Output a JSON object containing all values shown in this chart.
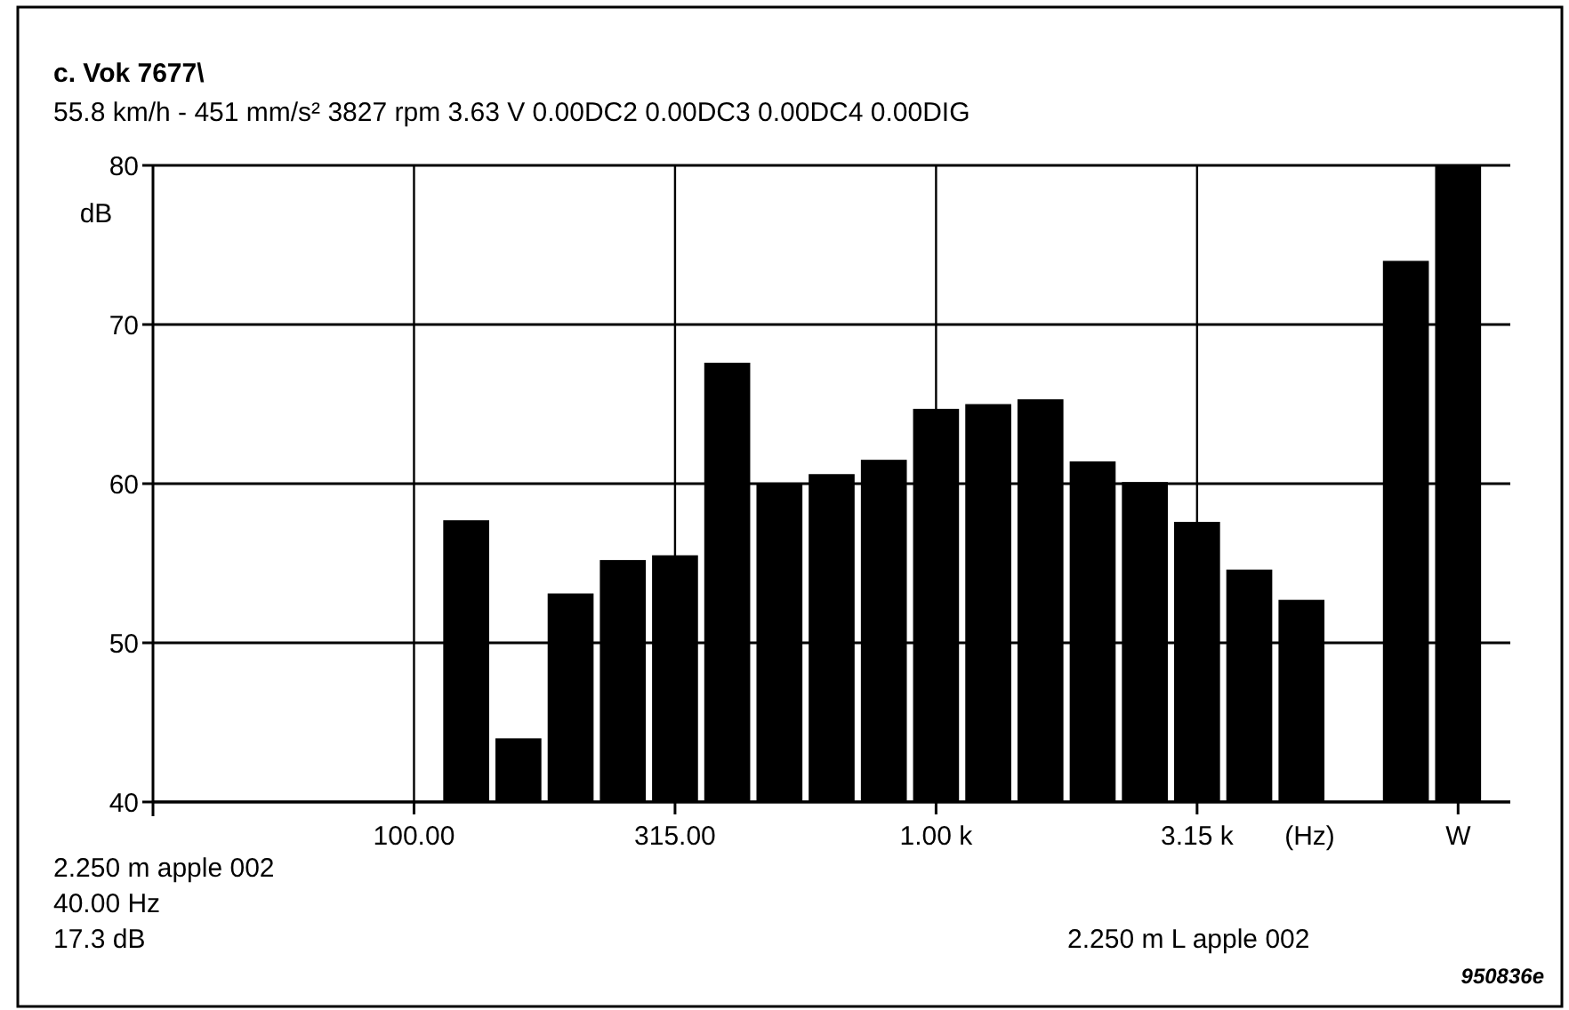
{
  "chart_data": {
    "type": "bar",
    "title": "c. Vok 7677\\",
    "subtitle": "55.8 km/h - 451 mm/s² 3827 rpm 3.63 V 0.00DC2 0.00DC3 0.00DC4 0.00DIG",
    "ylabel": "dB",
    "xlabel": "(Hz)",
    "categories": [
      null,
      null,
      null,
      null,
      null,
      "100.00",
      null,
      null,
      null,
      null,
      "315.00",
      null,
      null,
      null,
      null,
      "1.00 k",
      null,
      null,
      null,
      null,
      "3.15 k",
      null,
      null,
      null,
      null,
      "W",
      null
    ],
    "values": [
      null,
      null,
      null,
      null,
      null,
      null,
      57.7,
      44.0,
      53.1,
      55.2,
      55.5,
      67.6,
      60.0,
      60.6,
      61.5,
      64.7,
      65.0,
      65.3,
      61.4,
      60.1,
      57.6,
      54.6,
      52.7,
      null,
      74.0,
      80.0,
      null
    ],
    "color": "#000000",
    "ylim": [
      40,
      80
    ],
    "yticks": [
      40,
      50,
      60,
      70,
      80
    ],
    "grid": true,
    "annotations": [
      "2.250 m apple 002",
      "40.00 Hz",
      "17.3 dB",
      "2.250 m L apple 002",
      "950836e"
    ]
  }
}
